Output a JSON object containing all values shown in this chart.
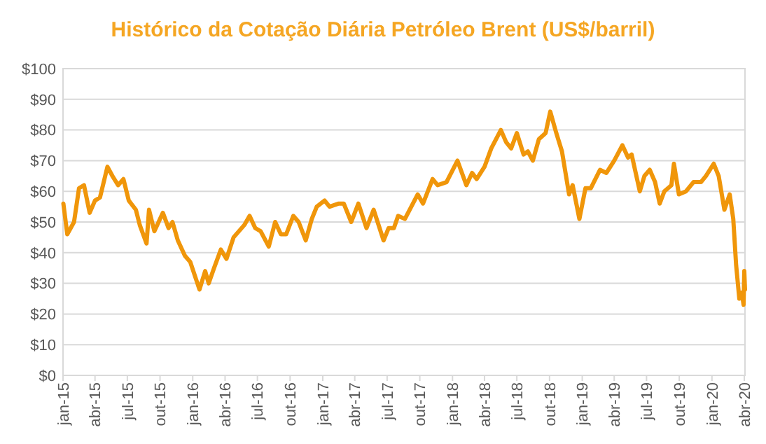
{
  "chart_data": {
    "type": "line",
    "title": "Histórico da Cotação Diária Petróleo Brent (US$/barril)",
    "x": [
      "2015-01-02",
      "2015-01-13",
      "2015-02-01",
      "2015-02-15",
      "2015-03-01",
      "2015-03-17",
      "2015-04-01",
      "2015-04-15",
      "2015-05-06",
      "2015-05-20",
      "2015-06-05",
      "2015-06-20",
      "2015-07-05",
      "2015-07-25",
      "2015-08-05",
      "2015-08-24",
      "2015-08-31",
      "2015-09-15",
      "2015-10-09",
      "2015-10-25",
      "2015-11-05",
      "2015-11-20",
      "2015-12-10",
      "2015-12-25",
      "2016-01-20",
      "2016-02-05",
      "2016-02-15",
      "2016-03-01",
      "2016-03-20",
      "2016-04-05",
      "2016-04-25",
      "2016-05-25",
      "2016-06-09",
      "2016-06-25",
      "2016-07-10",
      "2016-08-02",
      "2016-08-20",
      "2016-09-05",
      "2016-09-20",
      "2016-10-10",
      "2016-10-25",
      "2016-11-14",
      "2016-12-01",
      "2016-12-15",
      "2017-01-06",
      "2017-01-20",
      "2017-02-15",
      "2017-03-01",
      "2017-03-22",
      "2017-04-11",
      "2017-05-04",
      "2017-05-24",
      "2017-06-21",
      "2017-07-05",
      "2017-07-20",
      "2017-08-01",
      "2017-08-20",
      "2017-09-25",
      "2017-10-10",
      "2017-11-06",
      "2017-11-20",
      "2017-12-15",
      "2018-01-15",
      "2018-02-09",
      "2018-02-25",
      "2018-03-10",
      "2018-04-01",
      "2018-04-20",
      "2018-05-17",
      "2018-06-01",
      "2018-06-15",
      "2018-07-01",
      "2018-07-20",
      "2018-08-01",
      "2018-08-15",
      "2018-09-01",
      "2018-09-20",
      "2018-10-03",
      "2018-10-20",
      "2018-11-05",
      "2018-11-25",
      "2018-12-05",
      "2018-12-24",
      "2019-01-10",
      "2019-01-25",
      "2019-02-20",
      "2019-03-10",
      "2019-04-01",
      "2019-04-24",
      "2019-05-10",
      "2019-05-20",
      "2019-06-12",
      "2019-06-25",
      "2019-07-10",
      "2019-07-25",
      "2019-08-07",
      "2019-08-20",
      "2019-09-09",
      "2019-09-16",
      "2019-09-30",
      "2019-10-20",
      "2019-11-10",
      "2019-12-01",
      "2019-12-15",
      "2020-01-06",
      "2020-01-20",
      "2020-02-05",
      "2020-02-20",
      "2020-03-01",
      "2020-03-09",
      "2020-03-18",
      "2020-03-25",
      "2020-03-30",
      "2020-04-01",
      "2020-04-03"
    ],
    "series": [
      {
        "color": "#f0960a",
        "values": [
          56,
          46,
          50,
          61,
          62,
          53,
          57,
          58,
          68,
          65,
          62,
          64,
          57,
          54,
          49,
          43,
          54,
          47,
          53,
          48,
          50,
          44,
          39,
          37,
          28,
          34,
          30,
          35,
          41,
          38,
          45,
          49,
          52,
          48,
          47,
          42,
          50,
          46,
          46,
          52,
          50,
          44,
          51,
          55,
          57,
          55,
          56,
          56,
          50,
          56,
          48,
          54,
          44,
          48,
          48,
          52,
          51,
          59,
          56,
          64,
          62,
          63,
          70,
          62,
          66,
          64,
          68,
          74,
          80,
          76,
          74,
          79,
          72,
          73,
          70,
          77,
          79,
          86,
          79,
          73,
          59,
          62,
          51,
          61,
          61,
          67,
          66,
          70,
          75,
          71,
          72,
          60,
          65,
          67,
          63,
          56,
          60,
          62,
          69,
          59,
          60,
          63,
          63,
          65,
          69,
          65,
          54,
          59,
          51,
          36,
          25,
          27,
          23,
          34,
          28
        ]
      }
    ],
    "xlim": [
      "2015-01-01",
      "2020-04-03"
    ],
    "xticks": [
      {
        "value": "2015-01-01",
        "label": "jan-15"
      },
      {
        "value": "2015-04-01",
        "label": "abr-15"
      },
      {
        "value": "2015-07-01",
        "label": "jul-15"
      },
      {
        "value": "2015-10-01",
        "label": "out-15"
      },
      {
        "value": "2016-01-01",
        "label": "jan-16"
      },
      {
        "value": "2016-04-01",
        "label": "abr-16"
      },
      {
        "value": "2016-07-01",
        "label": "jul-16"
      },
      {
        "value": "2016-10-01",
        "label": "out-16"
      },
      {
        "value": "2017-01-01",
        "label": "jan-17"
      },
      {
        "value": "2017-04-01",
        "label": "abr-17"
      },
      {
        "value": "2017-07-01",
        "label": "jul-17"
      },
      {
        "value": "2017-10-01",
        "label": "out-17"
      },
      {
        "value": "2018-01-01",
        "label": "jan-18"
      },
      {
        "value": "2018-04-01",
        "label": "abr-18"
      },
      {
        "value": "2018-07-01",
        "label": "jul-18"
      },
      {
        "value": "2018-10-01",
        "label": "out-18"
      },
      {
        "value": "2019-01-01",
        "label": "jan-19"
      },
      {
        "value": "2019-04-01",
        "label": "abr-19"
      },
      {
        "value": "2019-07-01",
        "label": "jul-19"
      },
      {
        "value": "2019-10-01",
        "label": "out-19"
      },
      {
        "value": "2020-01-01",
        "label": "jan-20"
      },
      {
        "value": "2020-04-01",
        "label": "abr-20"
      }
    ],
    "ylim": [
      0,
      100
    ],
    "yticks": [
      {
        "value": 0,
        "label": "$0"
      },
      {
        "value": 10,
        "label": "$10"
      },
      {
        "value": 20,
        "label": "$20"
      },
      {
        "value": 30,
        "label": "$30"
      },
      {
        "value": 40,
        "label": "$40"
      },
      {
        "value": 50,
        "label": "$50"
      },
      {
        "value": 60,
        "label": "$60"
      },
      {
        "value": 70,
        "label": "$70"
      },
      {
        "value": 80,
        "label": "$80"
      },
      {
        "value": 90,
        "label": "$90"
      },
      {
        "value": 100,
        "label": "$100"
      }
    ],
    "grid": "y"
  }
}
